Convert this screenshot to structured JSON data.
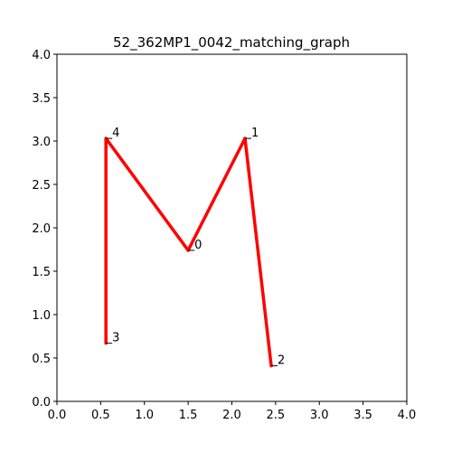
{
  "chart_data": {
    "type": "line",
    "title": "52_362MP1_0042_matching_graph",
    "xlabel": "",
    "ylabel": "",
    "xlim": [
      0.0,
      4.0
    ],
    "ylim": [
      0.0,
      4.0
    ],
    "grid": false,
    "x_ticks": [
      "0.0",
      "0.5",
      "1.0",
      "1.5",
      "2.0",
      "2.5",
      "3.0",
      "3.5",
      "4.0"
    ],
    "y_ticks": [
      "0.0",
      "0.5",
      "1.0",
      "1.5",
      "2.0",
      "2.5",
      "3.0",
      "3.5",
      "4.0"
    ],
    "nodes": [
      {
        "id": "0",
        "x": 1.5,
        "y": 1.74
      },
      {
        "id": "1",
        "x": 2.15,
        "y": 3.03
      },
      {
        "id": "2",
        "x": 2.45,
        "y": 0.41
      },
      {
        "id": "3",
        "x": 0.56,
        "y": 0.67
      },
      {
        "id": "4",
        "x": 0.56,
        "y": 3.03
      }
    ],
    "edges": [
      [
        "4",
        "3"
      ],
      [
        "4",
        "0"
      ],
      [
        "0",
        "1"
      ],
      [
        "1",
        "2"
      ]
    ],
    "edge_color": "#ff0000"
  }
}
